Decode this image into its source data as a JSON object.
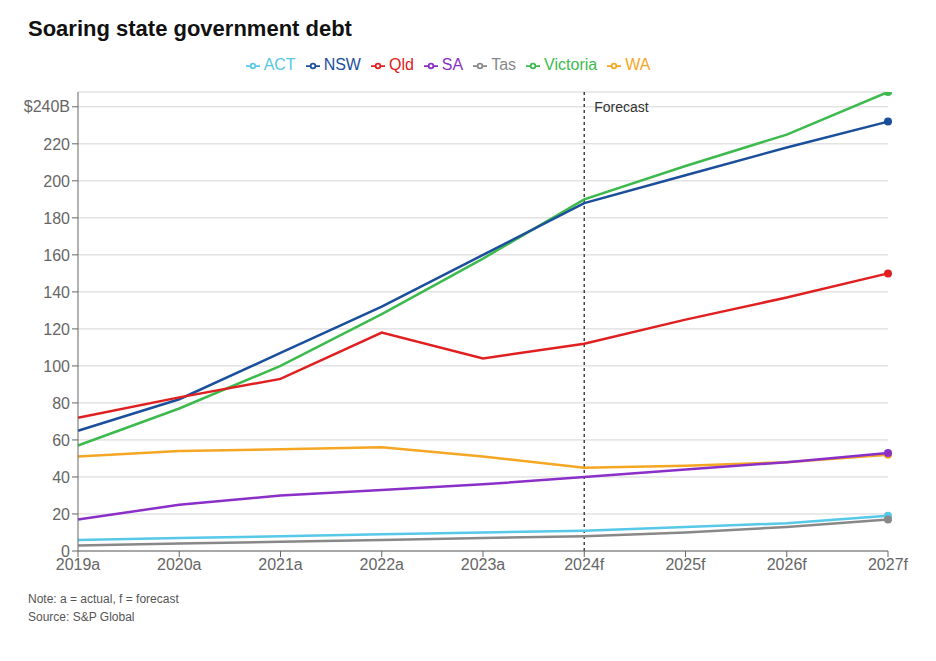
{
  "chart_data": {
    "type": "line",
    "title": "Soaring state government debt",
    "note": "Note: a = actual, f = forecast",
    "source": "Source: S&P Global",
    "categories": [
      "2019a",
      "2020a",
      "2021a",
      "2022a",
      "2023a",
      "2024f",
      "2025f",
      "2026f",
      "2027f"
    ],
    "series": [
      {
        "name": "Victoria",
        "color": "#3dba4e",
        "values": [
          57,
          77,
          100,
          128,
          158,
          190,
          208,
          225,
          248
        ]
      },
      {
        "name": "NSW",
        "color": "#1b4f9b",
        "values": [
          65,
          82,
          107,
          132,
          160,
          188,
          203,
          218,
          232
        ]
      },
      {
        "name": "Qld",
        "color": "#e02020",
        "values": [
          72,
          83,
          93,
          118,
          104,
          112,
          125,
          137,
          150
        ]
      },
      {
        "name": "WA",
        "color": "#f5a623",
        "values": [
          51,
          54,
          55,
          56,
          51,
          45,
          46,
          48,
          52
        ]
      },
      {
        "name": "SA",
        "color": "#8b2fc9",
        "values": [
          17,
          25,
          30,
          33,
          36,
          40,
          44,
          48,
          53
        ]
      },
      {
        "name": "ACT",
        "color": "#56c8e8",
        "values": [
          6,
          7,
          8,
          9,
          10,
          11,
          13,
          15,
          19
        ]
      },
      {
        "name": "Tas",
        "color": "#888888",
        "values": [
          3,
          4,
          5,
          6,
          7,
          8,
          10,
          13,
          17
        ]
      }
    ],
    "ylim": [
      0,
      248
    ],
    "yticks": [
      0,
      20,
      40,
      60,
      80,
      100,
      120,
      140,
      160,
      180,
      200,
      220,
      {
        "value": 240,
        "label": "$240B"
      }
    ],
    "grid": true,
    "legend": "top",
    "annotations": [
      {
        "text": "Forecast",
        "x": "2024f"
      }
    ]
  }
}
